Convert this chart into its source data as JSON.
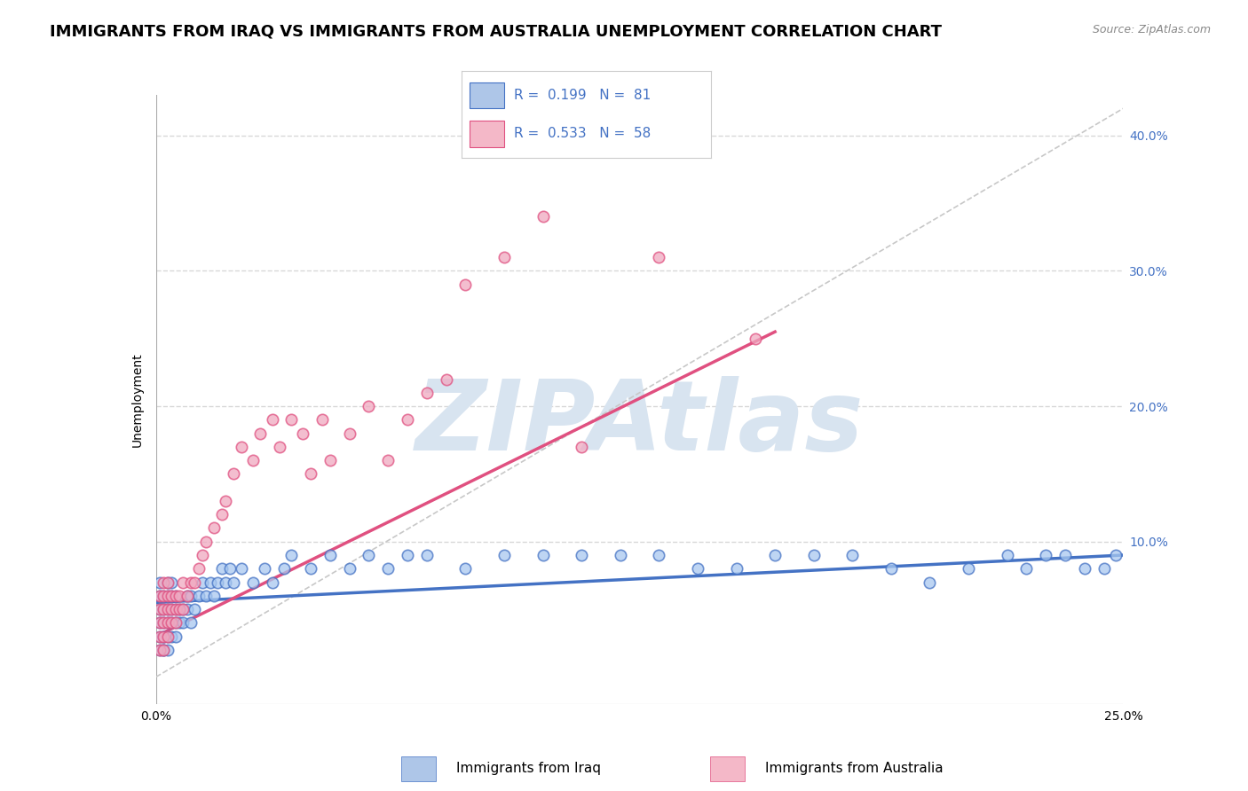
{
  "title": "IMMIGRANTS FROM IRAQ VS IMMIGRANTS FROM AUSTRALIA UNEMPLOYMENT CORRELATION CHART",
  "source_text": "Source: ZipAtlas.com",
  "ylabel": "Unemployment",
  "xlim": [
    0.0,
    0.25
  ],
  "ylim": [
    -0.02,
    0.43
  ],
  "ytick_labels": [
    "10.0%",
    "20.0%",
    "30.0%",
    "40.0%"
  ],
  "ytick_vals": [
    0.1,
    0.2,
    0.3,
    0.4
  ],
  "legend_box": {
    "iraq_color": "#aec6e8",
    "australia_color": "#f4b8c8",
    "iraq_R": "0.199",
    "iraq_N": "81",
    "australia_R": "0.533",
    "australia_N": "58"
  },
  "iraq_scatter_color": "#a8c8f0",
  "australia_scatter_color": "#f0a8c0",
  "iraq_line_color": "#4472c4",
  "australia_line_color": "#e05080",
  "ref_line_color": "#c8c8c8",
  "watermark_text": "ZIPAtlas",
  "watermark_color": "#d8e4f0",
  "title_fontsize": 13,
  "axis_label_fontsize": 10,
  "tick_fontsize": 10,
  "background_color": "#ffffff",
  "grid_color": "#d8d8d8",
  "iraq_x": [
    0.001,
    0.001,
    0.001,
    0.001,
    0.001,
    0.001,
    0.002,
    0.002,
    0.002,
    0.002,
    0.002,
    0.002,
    0.002,
    0.003,
    0.003,
    0.003,
    0.003,
    0.003,
    0.003,
    0.004,
    0.004,
    0.004,
    0.004,
    0.004,
    0.005,
    0.005,
    0.005,
    0.005,
    0.006,
    0.006,
    0.007,
    0.007,
    0.008,
    0.008,
    0.009,
    0.009,
    0.01,
    0.011,
    0.012,
    0.013,
    0.014,
    0.015,
    0.016,
    0.017,
    0.018,
    0.019,
    0.02,
    0.022,
    0.025,
    0.028,
    0.03,
    0.033,
    0.035,
    0.04,
    0.045,
    0.05,
    0.055,
    0.06,
    0.065,
    0.07,
    0.08,
    0.09,
    0.1,
    0.11,
    0.12,
    0.13,
    0.14,
    0.15,
    0.16,
    0.17,
    0.18,
    0.19,
    0.2,
    0.21,
    0.22,
    0.225,
    0.23,
    0.235,
    0.24,
    0.245,
    0.248
  ],
  "iraq_y": [
    0.02,
    0.03,
    0.04,
    0.05,
    0.06,
    0.07,
    0.02,
    0.03,
    0.04,
    0.05,
    0.06,
    0.02,
    0.03,
    0.02,
    0.03,
    0.04,
    0.05,
    0.06,
    0.07,
    0.03,
    0.04,
    0.05,
    0.06,
    0.07,
    0.03,
    0.04,
    0.05,
    0.06,
    0.04,
    0.05,
    0.04,
    0.05,
    0.05,
    0.06,
    0.04,
    0.06,
    0.05,
    0.06,
    0.07,
    0.06,
    0.07,
    0.06,
    0.07,
    0.08,
    0.07,
    0.08,
    0.07,
    0.08,
    0.07,
    0.08,
    0.07,
    0.08,
    0.09,
    0.08,
    0.09,
    0.08,
    0.09,
    0.08,
    0.09,
    0.09,
    0.08,
    0.09,
    0.09,
    0.09,
    0.09,
    0.09,
    0.08,
    0.08,
    0.09,
    0.09,
    0.09,
    0.08,
    0.07,
    0.08,
    0.09,
    0.08,
    0.09,
    0.09,
    0.08,
    0.08,
    0.09
  ],
  "australia_x": [
    0.001,
    0.001,
    0.001,
    0.001,
    0.001,
    0.002,
    0.002,
    0.002,
    0.002,
    0.002,
    0.002,
    0.003,
    0.003,
    0.003,
    0.003,
    0.003,
    0.004,
    0.004,
    0.004,
    0.005,
    0.005,
    0.005,
    0.006,
    0.006,
    0.007,
    0.007,
    0.008,
    0.009,
    0.01,
    0.011,
    0.012,
    0.013,
    0.015,
    0.017,
    0.018,
    0.02,
    0.022,
    0.025,
    0.027,
    0.03,
    0.032,
    0.035,
    0.038,
    0.04,
    0.043,
    0.045,
    0.05,
    0.055,
    0.06,
    0.065,
    0.07,
    0.075,
    0.08,
    0.09,
    0.1,
    0.11,
    0.13,
    0.155
  ],
  "australia_y": [
    0.02,
    0.03,
    0.04,
    0.05,
    0.06,
    0.02,
    0.03,
    0.04,
    0.05,
    0.06,
    0.07,
    0.03,
    0.04,
    0.05,
    0.06,
    0.07,
    0.04,
    0.05,
    0.06,
    0.04,
    0.05,
    0.06,
    0.05,
    0.06,
    0.05,
    0.07,
    0.06,
    0.07,
    0.07,
    0.08,
    0.09,
    0.1,
    0.11,
    0.12,
    0.13,
    0.15,
    0.17,
    0.16,
    0.18,
    0.19,
    0.17,
    0.19,
    0.18,
    0.15,
    0.19,
    0.16,
    0.18,
    0.2,
    0.16,
    0.19,
    0.21,
    0.22,
    0.29,
    0.31,
    0.34,
    0.17,
    0.31,
    0.25
  ]
}
